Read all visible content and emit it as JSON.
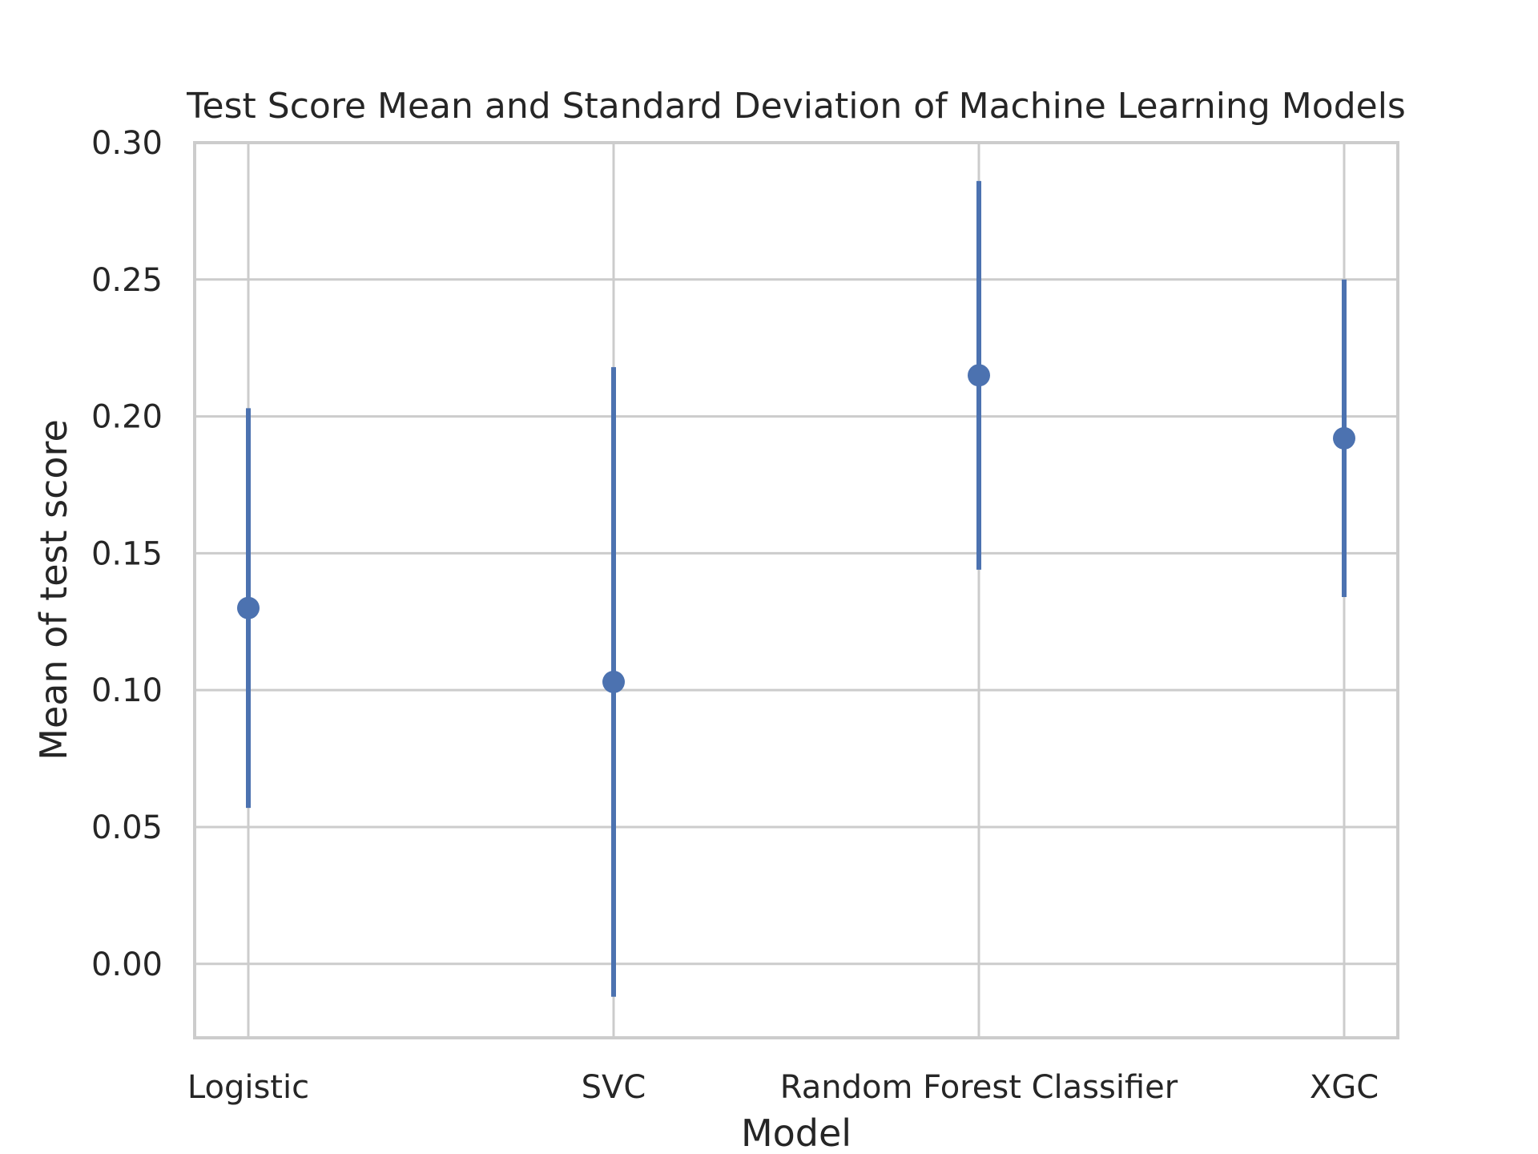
{
  "chart_data": {
    "type": "scatter",
    "title": "Test Score Mean and Standard Deviation of Machine Learning Models",
    "xlabel": "Model",
    "ylabel": "Mean of test score",
    "categories": [
      "Logistic",
      "SVC",
      "Random Forest Classifier",
      "XGC"
    ],
    "y_ticks": [
      "0.00",
      "0.05",
      "0.10",
      "0.15",
      "0.20",
      "0.25",
      "0.30"
    ],
    "ylim": [
      -0.027,
      0.3
    ],
    "grid": true,
    "series": [
      {
        "mean": [
          0.13,
          0.103,
          0.215,
          0.192
        ],
        "std": [
          0.073,
          0.115,
          0.071,
          0.058
        ],
        "color": "#4c72b0"
      }
    ],
    "colors": {
      "grid": "#cccccc",
      "spine": "#cccccc",
      "text": "#262626"
    }
  }
}
